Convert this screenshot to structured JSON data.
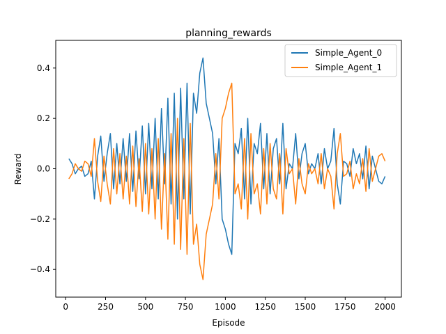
{
  "chart_data": {
    "type": "line",
    "title": "planning_rewards",
    "xlabel": "Episode",
    "ylabel": "Reward",
    "xlim": [
      -62,
      2102
    ],
    "ylim": [
      -0.51,
      0.51
    ],
    "xticks": [
      0,
      250,
      500,
      750,
      1000,
      1250,
      1500,
      1750,
      2000
    ],
    "yticks": [
      -0.4,
      -0.2,
      0.0,
      0.2,
      0.4
    ],
    "grid": false,
    "legend": "upper-right",
    "series": [
      {
        "name": "Simple_Agent_0",
        "color": "#1f77b4"
      },
      {
        "name": "Simple_Agent_1",
        "color": "#ff7f0e"
      }
    ],
    "series_data_note": "",
    "x": [
      20,
      40,
      60,
      80,
      100,
      120,
      140,
      160,
      180,
      200,
      220,
      240,
      260,
      280,
      300,
      320,
      340,
      360,
      380,
      400,
      420,
      440,
      460,
      480,
      500,
      520,
      540,
      560,
      580,
      600,
      620,
      640,
      660,
      680,
      700,
      720,
      740,
      760,
      780,
      800,
      820,
      840,
      860,
      880,
      900,
      920,
      940,
      960,
      980,
      1000,
      1020,
      1040,
      1060,
      1080,
      1100,
      1120,
      1140,
      1160,
      1180,
      1200,
      1220,
      1240,
      1260,
      1280,
      1300,
      1320,
      1340,
      1360,
      1380,
      1400,
      1420,
      1440,
      1460,
      1480,
      1500,
      1520,
      1540,
      1560,
      1580,
      1600,
      1620,
      1640,
      1660,
      1680,
      1700,
      1720,
      1740,
      1760,
      1780,
      1800,
      1820,
      1840,
      1860,
      1880,
      1900,
      1920,
      1940,
      1960,
      1980,
      2000
    ],
    "values_0": [
      0.04,
      0.02,
      -0.02,
      0.0,
      0.01,
      -0.03,
      -0.02,
      0.03,
      -0.12,
      0.05,
      0.13,
      -0.05,
      0.06,
      0.14,
      -0.08,
      0.1,
      -0.06,
      0.12,
      -0.05,
      0.14,
      -0.09,
      0.15,
      -0.04,
      0.17,
      -0.1,
      0.18,
      -0.08,
      0.2,
      -0.12,
      0.24,
      -0.06,
      0.28,
      -0.14,
      0.3,
      -0.2,
      0.32,
      -0.12,
      0.34,
      -0.18,
      0.3,
      0.22,
      0.38,
      0.44,
      0.26,
      0.2,
      0.14,
      -0.06,
      0.12,
      -0.2,
      -0.24,
      -0.3,
      -0.34,
      0.1,
      0.06,
      0.16,
      -0.12,
      0.2,
      -0.14,
      0.1,
      0.06,
      0.18,
      -0.08,
      0.14,
      -0.1,
      0.08,
      0.12,
      -0.06,
      0.18,
      -0.08,
      0.02,
      0.0,
      0.14,
      -0.04,
      0.06,
      0.1,
      -0.02,
      0.02,
      0.0,
      0.06,
      -0.06,
      0.08,
      0.0,
      0.03,
      0.16,
      -0.06,
      -0.14,
      0.03,
      0.02,
      -0.03,
      0.08,
      0.02,
      0.06,
      -0.04,
      0.09,
      -0.08,
      0.05,
      0.0,
      -0.05,
      -0.06,
      -0.03
    ],
    "values_1": [
      -0.04,
      -0.02,
      0.02,
      0.0,
      -0.01,
      0.03,
      0.02,
      -0.03,
      0.12,
      -0.05,
      -0.13,
      0.05,
      -0.06,
      -0.14,
      0.08,
      -0.1,
      0.06,
      -0.12,
      0.05,
      -0.14,
      0.09,
      -0.15,
      0.04,
      -0.17,
      0.1,
      -0.18,
      0.08,
      -0.2,
      0.12,
      -0.24,
      0.06,
      -0.28,
      0.14,
      -0.3,
      0.2,
      -0.32,
      0.12,
      -0.34,
      0.18,
      -0.3,
      -0.22,
      -0.38,
      -0.44,
      -0.26,
      -0.2,
      -0.14,
      0.06,
      -0.12,
      0.2,
      0.24,
      0.3,
      0.34,
      -0.1,
      -0.06,
      -0.16,
      0.12,
      -0.2,
      0.14,
      -0.1,
      -0.06,
      -0.18,
      0.08,
      -0.14,
      0.1,
      -0.08,
      -0.12,
      0.06,
      -0.18,
      0.08,
      -0.02,
      0.0,
      -0.14,
      0.04,
      -0.06,
      -0.1,
      0.02,
      -0.02,
      0.0,
      -0.06,
      0.06,
      -0.08,
      0.0,
      -0.03,
      -0.16,
      0.06,
      0.14,
      -0.03,
      -0.02,
      0.03,
      -0.08,
      -0.02,
      -0.06,
      0.04,
      -0.09,
      0.08,
      -0.05,
      0.0,
      0.05,
      0.06,
      0.03
    ]
  }
}
